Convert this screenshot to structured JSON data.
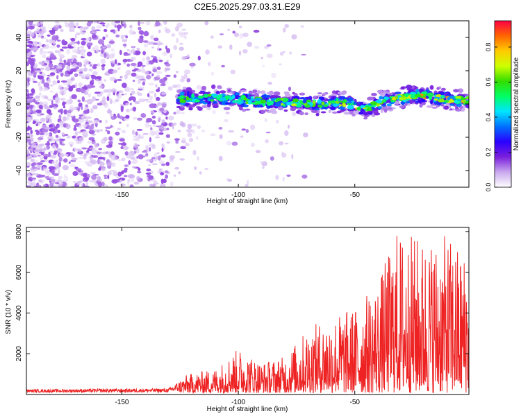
{
  "title": "C2E5.2025.297.03.31.E29",
  "colorbar": {
    "label": "Normalized spectral amplitude",
    "ticks": [
      "0.0",
      "0.2",
      "0.4",
      "0.6",
      "0.8"
    ],
    "tick_values": [
      0.0,
      0.2,
      0.4,
      0.6,
      0.8
    ],
    "range": [
      0.0,
      0.95
    ],
    "colors": [
      "#ffffff",
      "#c9a8ee",
      "#7a1fdc",
      "#2a00ff",
      "#0070ff",
      "#00e5ff",
      "#00ff66",
      "#33dd00",
      "#ccff00",
      "#ffcc00",
      "#ff6600",
      "#ff0044"
    ]
  },
  "chart_data": [
    {
      "type": "heatmap",
      "title": "C2E5.2025.297.03.31.E29",
      "xlabel": "Height of straight line (km)",
      "ylabel": "Frequency (Hz)",
      "xlim": [
        -191,
        -1
      ],
      "ylim": [
        -50,
        50
      ],
      "xticks": [
        -150,
        -100,
        -50
      ],
      "xtick_labels": [
        "-150",
        "-100",
        "-50"
      ],
      "yticks": [
        -40,
        -20,
        0,
        20,
        40
      ],
      "ytick_labels": [
        "-40",
        "-20",
        "0",
        "20",
        "40"
      ],
      "signal_band": [
        {
          "x": -125,
          "freq": 3
        },
        {
          "x": -110,
          "freq": 4
        },
        {
          "x": -95,
          "freq": 2
        },
        {
          "x": -80,
          "freq": 1
        },
        {
          "x": -65,
          "freq": 0
        },
        {
          "x": -55,
          "freq": 1
        },
        {
          "x": -45,
          "freq": -3
        },
        {
          "x": -38,
          "freq": 2
        },
        {
          "x": -30,
          "freq": 4
        },
        {
          "x": -20,
          "freq": 5
        },
        {
          "x": -10,
          "freq": 3
        },
        {
          "x": -1,
          "freq": 2
        }
      ]
    },
    {
      "type": "line",
      "title": "",
      "xlabel": "Height of straight line (km)",
      "ylabel": "SNR (10 * v/v)",
      "xlim": [
        -191,
        -1
      ],
      "ylim": [
        0,
        8200
      ],
      "xticks": [
        -150,
        -100,
        -50
      ],
      "xtick_labels": [
        "-150",
        "-100",
        "-50"
      ],
      "yticks": [
        2000,
        4000,
        6000,
        8000
      ],
      "ytick_labels": [
        "2000",
        "4000",
        "6000",
        "8000"
      ],
      "series": [
        {
          "name": "SNR",
          "color": "#ee2222",
          "envelope": [
            {
              "x": -191,
              "max": 250
            },
            {
              "x": -130,
              "max": 300
            },
            {
              "x": -122,
              "max": 900
            },
            {
              "x": -110,
              "max": 1200
            },
            {
              "x": -100,
              "max": 2200
            },
            {
              "x": -90,
              "max": 1500
            },
            {
              "x": -80,
              "max": 1800
            },
            {
              "x": -70,
              "max": 3200
            },
            {
              "x": -60,
              "max": 3800
            },
            {
              "x": -50,
              "max": 4200
            },
            {
              "x": -40,
              "max": 5500
            },
            {
              "x": -32,
              "max": 8000
            },
            {
              "x": -20,
              "max": 7600
            },
            {
              "x": -10,
              "max": 7700
            },
            {
              "x": -1,
              "max": 6800
            }
          ]
        }
      ]
    }
  ]
}
